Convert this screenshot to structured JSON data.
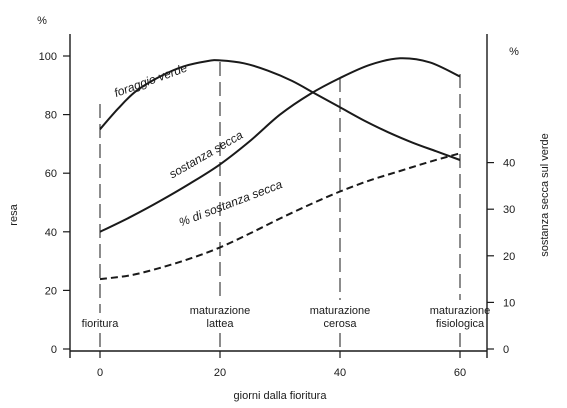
{
  "chart_data": {
    "type": "line",
    "xlabel": "giorni dalla fioritura",
    "ylabel": "resa",
    "y2label": "sostanza secca sul verde",
    "y_unit": "%",
    "y2_unit": "%",
    "xlim": [
      0,
      60
    ],
    "ylim": [
      0,
      100
    ],
    "y2lim": [
      0,
      50
    ],
    "x_ticks": [
      "0",
      "20",
      "40",
      "60"
    ],
    "y_ticks": [
      "0",
      "20",
      "40",
      "60",
      "80",
      "100"
    ],
    "y2_ticks": [
      "0",
      "10",
      "20",
      "30",
      "40"
    ],
    "stages": [
      {
        "x": 0,
        "lines": [
          "fioritura"
        ]
      },
      {
        "x": 20,
        "lines": [
          "maturazione",
          "lattea"
        ]
      },
      {
        "x": 40,
        "lines": [
          "maturazione",
          "cerosa"
        ]
      },
      {
        "x": 60,
        "lines": [
          "maturazione",
          "fisiologica"
        ]
      }
    ],
    "series": [
      {
        "name": "foraggio verde",
        "axis": "left",
        "style": "solid",
        "x": [
          0,
          3,
          6,
          10,
          14,
          18,
          20,
          24,
          28,
          32,
          36,
          40,
          44,
          48,
          52,
          56,
          60
        ],
        "y": [
          75,
          82,
          88,
          93,
          96.5,
          98.3,
          98.5,
          97.5,
          95,
          91.5,
          87,
          82.5,
          78,
          74,
          70.5,
          67.5,
          64.5
        ]
      },
      {
        "name": "sostanza secca",
        "axis": "left",
        "style": "solid",
        "x": [
          0,
          5,
          10,
          15,
          20,
          25,
          30,
          35,
          40,
          45,
          50,
          55,
          60
        ],
        "y": [
          40,
          45,
          50.5,
          56.5,
          63,
          71,
          80,
          87,
          92.5,
          97,
          99.2,
          97.8,
          93
        ]
      },
      {
        "name": "% di sostanza secca",
        "axis": "right",
        "style": "dashed",
        "x": [
          0,
          5,
          10,
          15,
          20,
          25,
          30,
          35,
          40,
          45,
          50,
          55,
          60
        ],
        "y": [
          15,
          15.8,
          17.4,
          19.4,
          21.8,
          24.8,
          28,
          31,
          33.8,
          36.2,
          38.2,
          40.2,
          42
        ]
      }
    ]
  }
}
